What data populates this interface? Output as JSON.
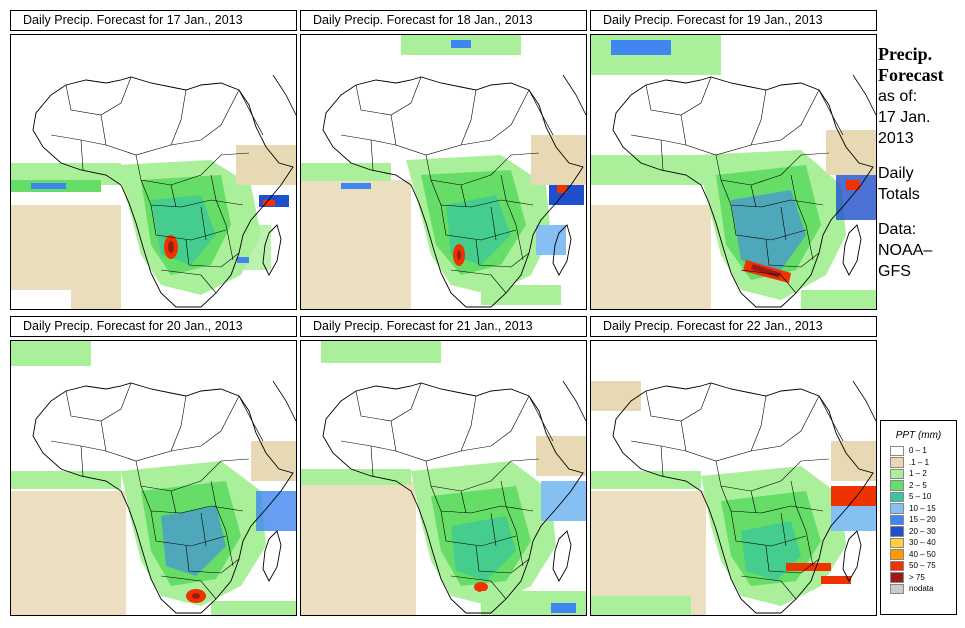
{
  "panels": [
    {
      "title": "Daily Precip. Forecast for  17 Jan., 2013"
    },
    {
      "title": "Daily Precip. Forecast for  18 Jan., 2013"
    },
    {
      "title": "Daily Precip. Forecast for  19 Jan., 2013"
    },
    {
      "title": "Daily Precip. Forecast for  20 Jan., 2013"
    },
    {
      "title": "Daily Precip. Forecast for  21 Jan., 2013"
    },
    {
      "title": "Daily Precip. Forecast for  22 Jan., 2013"
    }
  ],
  "sidebar": {
    "heading_line1": "Precip.",
    "heading_line2": "Forecast",
    "asof_line1": "as of:",
    "asof_line2": "17 Jan.",
    "asof_line3": "2013",
    "totals_line1": "Daily",
    "totals_line2": "Totals",
    "data_line1": "Data:",
    "data_line2": "NOAA–",
    "data_line3": "GFS"
  },
  "legend": {
    "title": "PPT (mm)",
    "items": [
      {
        "label": "0 – 1",
        "color": "#ffffff"
      },
      {
        "label": ".1 – 1",
        "color": "#e8d9b5"
      },
      {
        "label": "1 – 2",
        "color": "#aaf09a"
      },
      {
        "label": "2 – 5",
        "color": "#66dd66"
      },
      {
        "label": "5 – 10",
        "color": "#38c6a0"
      },
      {
        "label": "10 – 15",
        "color": "#86bff2"
      },
      {
        "label": "15 – 20",
        "color": "#3f86f0"
      },
      {
        "label": "20 – 30",
        "color": "#1f4fcc"
      },
      {
        "label": "30 – 40",
        "color": "#ffd23c"
      },
      {
        "label": "40 – 50",
        "color": "#ff9a00"
      },
      {
        "label": "50 – 75",
        "color": "#ee3300"
      },
      {
        "label": "> 75",
        "color": "#9c1a1a"
      },
      {
        "label": "nodata",
        "color": "#cccccc"
      }
    ]
  }
}
